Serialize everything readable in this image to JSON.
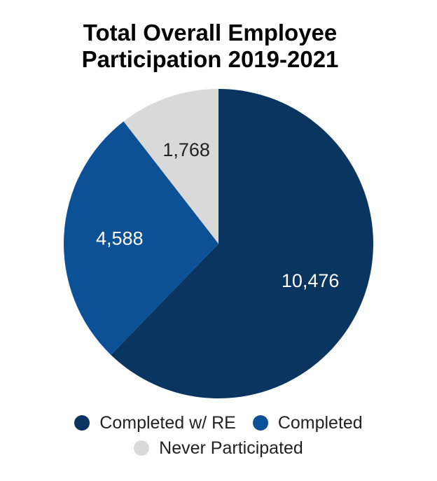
{
  "title_lines": [
    "Total Overall Employee",
    "Participation 2019-2021"
  ],
  "chart_data": {
    "type": "pie",
    "title": "Total Overall Employee Participation 2019-2021",
    "start_angle_deg": 0,
    "direction": "clockwise",
    "slices": [
      {
        "label": "Completed w/ RE",
        "value": 10476,
        "display": "10,476",
        "color": "#0a3560",
        "label_color": "#ffffff"
      },
      {
        "label": "Completed",
        "value": 4588,
        "display": "4,588",
        "color": "#0c5096",
        "label_color": "#ffffff"
      },
      {
        "label": "Never Participated",
        "value": 1768,
        "display": "1,768",
        "color": "#d9d9d9",
        "label_color": "#222222"
      }
    ],
    "legend_position": "bottom"
  },
  "legend": {
    "rows": [
      [
        {
          "label": "Completed w/ RE",
          "color": "#0a3560"
        },
        {
          "label": "Completed",
          "color": "#0c5096"
        }
      ],
      [
        {
          "label": "Never Participated",
          "color": "#d9d9d9"
        }
      ]
    ]
  }
}
